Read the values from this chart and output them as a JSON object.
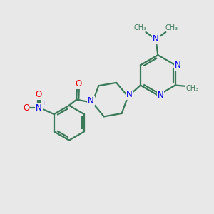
{
  "background_color": "#e8e8e8",
  "bond_color": "#3a7a5a",
  "n_color": "#0000ee",
  "o_color": "#ee0000",
  "linewidth": 1.6,
  "figsize": [
    3.0,
    3.0
  ],
  "dpi": 100,
  "xlim": [
    0,
    10
  ],
  "ylim": [
    0,
    10
  ]
}
